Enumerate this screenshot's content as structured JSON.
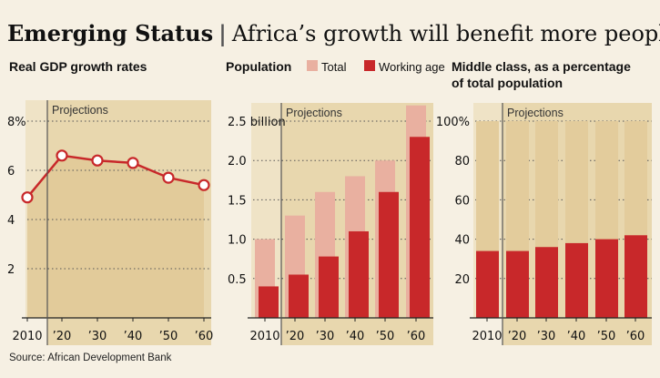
{
  "header": {
    "title_bold": "Emerging Status",
    "separator": "|",
    "title_rest": "Africa’s growth will benefit more people"
  },
  "source": "Source: African Development Bank",
  "colors": {
    "background": "#f6f0e3",
    "panel": "#efe3c6",
    "projection_shade": "#e8d7ae",
    "area": "#e0c996",
    "red": "#c8282a",
    "pink": "#e9b0a0"
  },
  "chart_data": [
    {
      "type": "line",
      "title": "Real GDP growth rates",
      "categories": [
        "2010",
        "’20",
        "’30",
        "’40",
        "’50",
        "’60"
      ],
      "values": [
        4.9,
        6.6,
        6.4,
        6.3,
        5.7,
        5.4
      ],
      "yticks": [
        {
          "v": 8,
          "label": "8%"
        },
        {
          "v": 6,
          "label": "6"
        },
        {
          "v": 4,
          "label": "4"
        },
        {
          "v": 2,
          "label": "2"
        }
      ],
      "ylim": [
        0,
        8.8
      ],
      "annotation": "Projections",
      "grid": true
    },
    {
      "type": "bar",
      "title": "Population",
      "legend": [
        {
          "name": "Total"
        },
        {
          "name": "Working age"
        }
      ],
      "categories": [
        "2010",
        "’20",
        "’30",
        "’40",
        "’50",
        "’60"
      ],
      "series": [
        {
          "name": "Total",
          "values": [
            1.0,
            1.3,
            1.6,
            1.8,
            2.0,
            2.7
          ]
        },
        {
          "name": "Working age",
          "values": [
            0.4,
            0.55,
            0.78,
            1.1,
            1.6,
            2.3
          ]
        }
      ],
      "yticks": [
        {
          "v": 2.5,
          "label": "2.5 billion"
        },
        {
          "v": 2.0,
          "label": "2.0"
        },
        {
          "v": 1.5,
          "label": "1.5"
        },
        {
          "v": 1.0,
          "label": "1.0"
        },
        {
          "v": 0.5,
          "label": "0.5"
        }
      ],
      "ylim": [
        0,
        2.75
      ],
      "annotation": "Projections",
      "grid": true
    },
    {
      "type": "bar",
      "title_line1": "Middle class, as a percentage",
      "title_line2": "of total population",
      "categories": [
        "2010",
        "’20",
        "’30",
        "’40",
        "’50",
        "’60"
      ],
      "values": [
        34,
        34,
        36,
        38,
        40,
        42
      ],
      "max": 100,
      "yticks": [
        {
          "v": 100,
          "label": "100%"
        },
        {
          "v": 80,
          "label": "80"
        },
        {
          "v": 60,
          "label": "60"
        },
        {
          "v": 40,
          "label": "40"
        },
        {
          "v": 20,
          "label": "20"
        }
      ],
      "ylim": [
        0,
        110
      ],
      "annotation": "Projections",
      "grid": true
    }
  ]
}
